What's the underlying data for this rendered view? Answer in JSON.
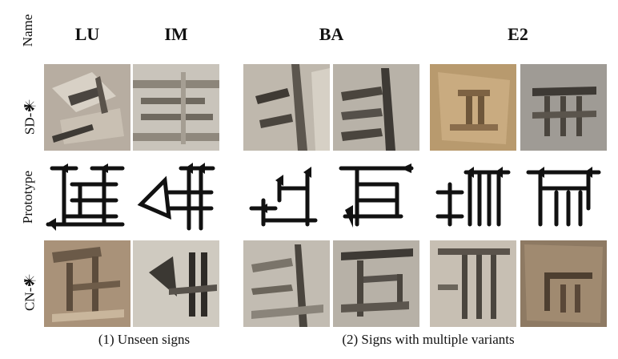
{
  "row_labels": {
    "name": "Name",
    "sd": "SD-𒀭",
    "prototype": "Prototype",
    "cn": "CN-𒀭"
  },
  "columns": [
    "LU",
    "IM",
    "BA",
    "E2"
  ],
  "captions": {
    "unseen": "(1) Unseen signs",
    "variants": "(2) Signs with multiple variants"
  },
  "tile_colors": {
    "stone_gray": "#b8b2a8",
    "stone_light": "#cfcac0",
    "stone_tan": "#b89a6e",
    "stone_brown": "#8e7a63",
    "shadow": "#3e3a35"
  }
}
